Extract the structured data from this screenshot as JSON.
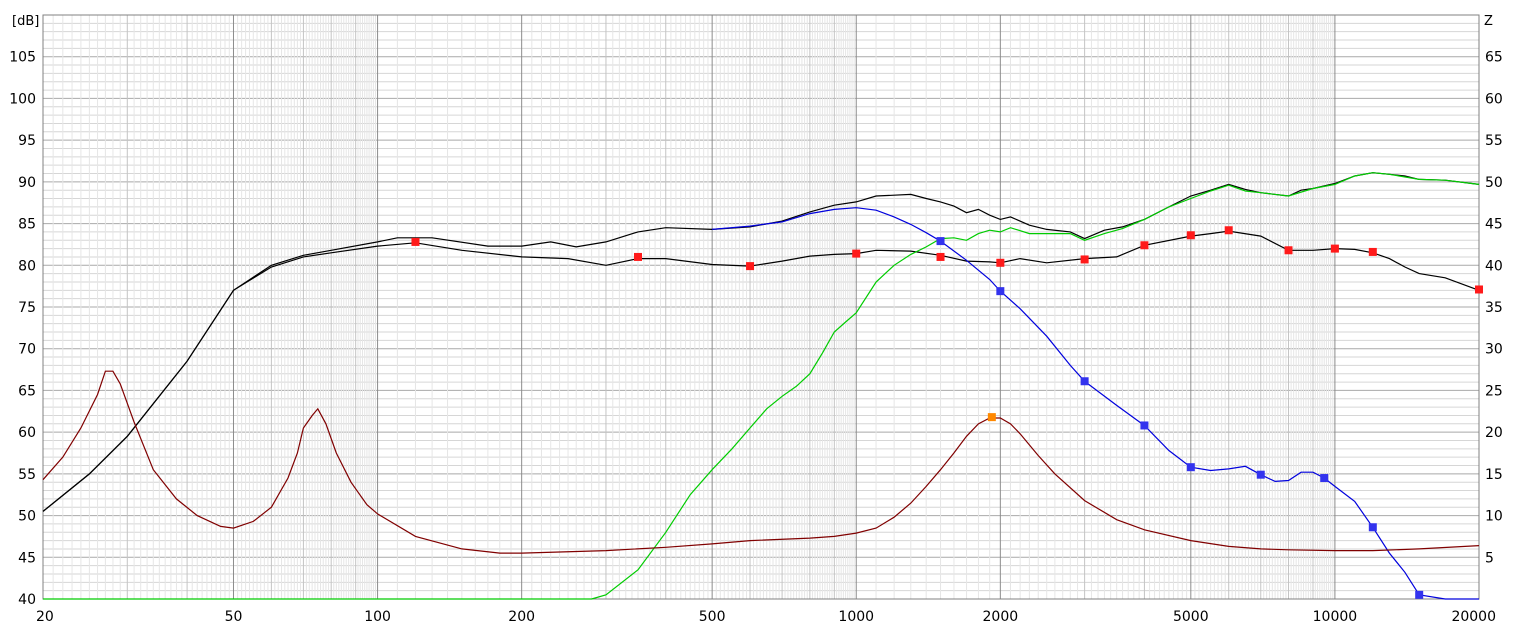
{
  "chart_data": {
    "type": "line",
    "x_scale": "log",
    "x_range": [
      20,
      20000
    ],
    "y_left_range": [
      40,
      110
    ],
    "y_right_range": [
      0,
      70
    ],
    "grid": true,
    "left_unit": "[dB]",
    "right_unit": "Z",
    "x_ticks": [
      {
        "v": 20,
        "label": "20"
      },
      {
        "v": 50,
        "label": "50"
      },
      {
        "v": 100,
        "label": "100"
      },
      {
        "v": 200,
        "label": "200"
      },
      {
        "v": 500,
        "label": "500"
      },
      {
        "v": 1000,
        "label": "1000"
      },
      {
        "v": 2000,
        "label": "2000"
      },
      {
        "v": 5000,
        "label": "5000"
      },
      {
        "v": 10000,
        "label": "10000"
      },
      {
        "v": 20000,
        "label": "20000"
      }
    ],
    "y_left_ticks": [
      {
        "v": 40,
        "label": "40"
      },
      {
        "v": 45,
        "label": "45"
      },
      {
        "v": 50,
        "label": "50"
      },
      {
        "v": 55,
        "label": "55"
      },
      {
        "v": 60,
        "label": "60"
      },
      {
        "v": 65,
        "label": "65"
      },
      {
        "v": 70,
        "label": "70"
      },
      {
        "v": 75,
        "label": "75"
      },
      {
        "v": 80,
        "label": "80"
      },
      {
        "v": 85,
        "label": "85"
      },
      {
        "v": 90,
        "label": "90"
      },
      {
        "v": 95,
        "label": "95"
      },
      {
        "v": 100,
        "label": "100"
      },
      {
        "v": 105,
        "label": "105"
      }
    ],
    "y_right_ticks": [
      {
        "v": 5,
        "label": "5"
      },
      {
        "v": 10,
        "label": "10"
      },
      {
        "v": 15,
        "label": "15"
      },
      {
        "v": 20,
        "label": "20"
      },
      {
        "v": 25,
        "label": "25"
      },
      {
        "v": 30,
        "label": "30"
      },
      {
        "v": 35,
        "label": "35"
      },
      {
        "v": 40,
        "label": "40"
      },
      {
        "v": 45,
        "label": "45"
      },
      {
        "v": 50,
        "label": "50"
      },
      {
        "v": 55,
        "label": "55"
      },
      {
        "v": 60,
        "label": "60"
      },
      {
        "v": 65,
        "label": "65"
      }
    ],
    "series": [
      {
        "color": "#000000",
        "axis": "left",
        "points": [
          [
            20,
            50.5
          ],
          [
            25,
            55
          ],
          [
            30,
            59.5
          ],
          [
            40,
            68.5
          ],
          [
            50,
            77
          ],
          [
            60,
            80
          ],
          [
            70,
            81.2
          ],
          [
            80,
            81.8
          ],
          [
            100,
            82.8
          ],
          [
            110,
            83.3
          ],
          [
            130,
            83.3
          ],
          [
            170,
            82.3
          ],
          [
            200,
            82.3
          ],
          [
            230,
            82.8
          ],
          [
            260,
            82.2
          ],
          [
            300,
            82.8
          ],
          [
            350,
            84
          ],
          [
            400,
            84.5
          ],
          [
            500,
            84.3
          ],
          [
            600,
            84.6
          ],
          [
            700,
            85.3
          ],
          [
            800,
            86.4
          ],
          [
            900,
            87.2
          ],
          [
            1000,
            87.6
          ],
          [
            1100,
            88.3
          ],
          [
            1200,
            88.4
          ],
          [
            1300,
            88.5
          ],
          [
            1400,
            88
          ],
          [
            1500,
            87.6
          ],
          [
            1600,
            87.1
          ],
          [
            1700,
            86.3
          ],
          [
            1800,
            86.7
          ],
          [
            1900,
            86
          ],
          [
            2000,
            85.5
          ],
          [
            2100,
            85.8
          ],
          [
            2300,
            84.8
          ],
          [
            2500,
            84.3
          ],
          [
            2800,
            84
          ],
          [
            3000,
            83.2
          ],
          [
            3300,
            84.2
          ],
          [
            3600,
            84.6
          ],
          [
            4000,
            85.5
          ],
          [
            4500,
            87
          ],
          [
            5000,
            88.3
          ],
          [
            5500,
            89
          ],
          [
            6000,
            89.7
          ],
          [
            6500,
            89.1
          ],
          [
            7000,
            88.7
          ],
          [
            8000,
            88.3
          ],
          [
            8500,
            89
          ],
          [
            9000,
            89.2
          ],
          [
            10000,
            89.8
          ],
          [
            11000,
            90.7
          ],
          [
            12000,
            91.1
          ],
          [
            13000,
            90.9
          ],
          [
            14000,
            90.7
          ],
          [
            15000,
            90.3
          ],
          [
            17000,
            90.2
          ],
          [
            20000,
            89.7
          ]
        ]
      },
      {
        "color": "#000000",
        "axis": "left",
        "points": [
          [
            20,
            50.5
          ],
          [
            25,
            55
          ],
          [
            30,
            59.5
          ],
          [
            40,
            68.5
          ],
          [
            50,
            77
          ],
          [
            60,
            79.8
          ],
          [
            70,
            81
          ],
          [
            80,
            81.5
          ],
          [
            100,
            82.3
          ],
          [
            120,
            82.7
          ],
          [
            150,
            81.8
          ],
          [
            200,
            81
          ],
          [
            250,
            80.8
          ],
          [
            300,
            80
          ],
          [
            350,
            80.8
          ],
          [
            400,
            80.8
          ],
          [
            500,
            80.1
          ],
          [
            600,
            79.9
          ],
          [
            700,
            80.5
          ],
          [
            800,
            81.1
          ],
          [
            900,
            81.3
          ],
          [
            1000,
            81.4
          ],
          [
            1100,
            81.8
          ],
          [
            1300,
            81.7
          ],
          [
            1500,
            81.2
          ],
          [
            1700,
            80.5
          ],
          [
            1900,
            80.4
          ],
          [
            2000,
            80.3
          ],
          [
            2200,
            80.8
          ],
          [
            2500,
            80.3
          ],
          [
            3000,
            80.8
          ],
          [
            3500,
            81
          ],
          [
            4000,
            82.4
          ],
          [
            5000,
            83.5
          ],
          [
            5500,
            83.8
          ],
          [
            6000,
            84.1
          ],
          [
            7000,
            83.5
          ],
          [
            8000,
            81.8
          ],
          [
            9000,
            81.8
          ],
          [
            10000,
            82
          ],
          [
            11000,
            81.9
          ],
          [
            12000,
            81.5
          ],
          [
            13000,
            80.8
          ],
          [
            14000,
            79.8
          ],
          [
            15000,
            79
          ],
          [
            17000,
            78.5
          ],
          [
            20000,
            77
          ]
        ]
      },
      {
        "color": "#00cc00",
        "axis": "left",
        "points": [
          [
            20,
            40
          ],
          [
            280,
            40
          ],
          [
            300,
            40.5
          ],
          [
            350,
            43.5
          ],
          [
            400,
            48
          ],
          [
            450,
            52.5
          ],
          [
            500,
            55.5
          ],
          [
            550,
            58
          ],
          [
            600,
            60.5
          ],
          [
            650,
            62.8
          ],
          [
            700,
            64.3
          ],
          [
            750,
            65.5
          ],
          [
            800,
            67
          ],
          [
            850,
            69.5
          ],
          [
            900,
            72
          ],
          [
            950,
            73.2
          ],
          [
            1000,
            74.3
          ],
          [
            1100,
            78
          ],
          [
            1200,
            80
          ],
          [
            1300,
            81.3
          ],
          [
            1400,
            82.2
          ],
          [
            1500,
            83.2
          ],
          [
            1600,
            83.3
          ],
          [
            1700,
            83
          ],
          [
            1800,
            83.8
          ],
          [
            1900,
            84.2
          ],
          [
            2000,
            84
          ],
          [
            2100,
            84.5
          ],
          [
            2300,
            83.8
          ],
          [
            2500,
            83.8
          ],
          [
            2800,
            83.8
          ],
          [
            3000,
            83
          ],
          [
            3300,
            83.8
          ],
          [
            3600,
            84.4
          ],
          [
            4000,
            85.5
          ],
          [
            4500,
            87
          ],
          [
            5000,
            88
          ],
          [
            5500,
            88.9
          ],
          [
            6000,
            89.6
          ],
          [
            6500,
            88.9
          ],
          [
            7000,
            88.7
          ],
          [
            8000,
            88.3
          ],
          [
            9000,
            89.2
          ],
          [
            10000,
            89.7
          ],
          [
            11000,
            90.7
          ],
          [
            12000,
            91.1
          ],
          [
            13000,
            90.9
          ],
          [
            15000,
            90.3
          ],
          [
            17000,
            90.2
          ],
          [
            20000,
            89.7
          ]
        ]
      },
      {
        "color": "#0000dd",
        "axis": "left",
        "points": [
          [
            500,
            84.3
          ],
          [
            600,
            84.7
          ],
          [
            700,
            85.2
          ],
          [
            800,
            86.2
          ],
          [
            900,
            86.7
          ],
          [
            1000,
            86.9
          ],
          [
            1100,
            86.6
          ],
          [
            1200,
            85.8
          ],
          [
            1300,
            84.9
          ],
          [
            1400,
            83.9
          ],
          [
            1500,
            82.9
          ],
          [
            1700,
            80.6
          ],
          [
            1900,
            78.3
          ],
          [
            2000,
            76.9
          ],
          [
            2200,
            74.8
          ],
          [
            2500,
            71.5
          ],
          [
            2800,
            68
          ],
          [
            3000,
            66.1
          ],
          [
            3500,
            63.2
          ],
          [
            4000,
            60.8
          ],
          [
            4500,
            57.8
          ],
          [
            5000,
            55.8
          ],
          [
            5500,
            55.4
          ],
          [
            6000,
            55.6
          ],
          [
            6500,
            55.9
          ],
          [
            7000,
            54.9
          ],
          [
            7500,
            54.1
          ],
          [
            8000,
            54.2
          ],
          [
            8500,
            55.2
          ],
          [
            9000,
            55.2
          ],
          [
            9500,
            54.5
          ],
          [
            10000,
            53.5
          ],
          [
            11000,
            51.7
          ],
          [
            12000,
            48.6
          ],
          [
            13000,
            45.5
          ],
          [
            14000,
            43.2
          ],
          [
            15000,
            40.5
          ],
          [
            17000,
            40
          ],
          [
            20000,
            40
          ]
        ]
      },
      {
        "color": "#800000",
        "axis": "right",
        "points": [
          [
            20,
            14.3
          ],
          [
            22,
            17
          ],
          [
            24,
            20.5
          ],
          [
            26,
            24.5
          ],
          [
            27,
            27.3
          ],
          [
            28,
            27.3
          ],
          [
            29,
            25.8
          ],
          [
            31,
            21.2
          ],
          [
            34,
            15.5
          ],
          [
            38,
            12
          ],
          [
            42,
            10
          ],
          [
            47,
            8.7
          ],
          [
            50,
            8.5
          ],
          [
            55,
            9.3
          ],
          [
            60,
            11
          ],
          [
            65,
            14.5
          ],
          [
            68,
            17.5
          ],
          [
            70,
            20.5
          ],
          [
            73,
            22
          ],
          [
            75,
            22.8
          ],
          [
            78,
            21
          ],
          [
            82,
            17.5
          ],
          [
            88,
            14
          ],
          [
            95,
            11.3
          ],
          [
            100,
            10.2
          ],
          [
            120,
            7.5
          ],
          [
            150,
            6
          ],
          [
            180,
            5.5
          ],
          [
            200,
            5.5
          ],
          [
            300,
            5.8
          ],
          [
            400,
            6.2
          ],
          [
            500,
            6.6
          ],
          [
            600,
            7
          ],
          [
            800,
            7.3
          ],
          [
            900,
            7.5
          ],
          [
            1000,
            7.9
          ],
          [
            1100,
            8.5
          ],
          [
            1200,
            9.8
          ],
          [
            1300,
            11.5
          ],
          [
            1400,
            13.5
          ],
          [
            1500,
            15.5
          ],
          [
            1600,
            17.5
          ],
          [
            1700,
            19.5
          ],
          [
            1800,
            21
          ],
          [
            1900,
            21.7
          ],
          [
            2000,
            21.7
          ],
          [
            2100,
            21
          ],
          [
            2200,
            19.8
          ],
          [
            2400,
            17.2
          ],
          [
            2600,
            15
          ],
          [
            3000,
            11.8
          ],
          [
            3500,
            9.5
          ],
          [
            4000,
            8.3
          ],
          [
            5000,
            7
          ],
          [
            6000,
            6.3
          ],
          [
            7000,
            6
          ],
          [
            8000,
            5.9
          ],
          [
            10000,
            5.8
          ],
          [
            12000,
            5.8
          ],
          [
            15000,
            6
          ],
          [
            20000,
            6.4
          ]
        ]
      }
    ],
    "markers": [
      {
        "color": "#ff1a1a",
        "points": [
          [
            120,
            82.8
          ],
          [
            350,
            81
          ],
          [
            600,
            79.9
          ],
          [
            1000,
            81.4
          ],
          [
            1500,
            81
          ],
          [
            2000,
            80.3
          ],
          [
            3000,
            80.7
          ],
          [
            4000,
            82.4
          ],
          [
            5000,
            83.6
          ],
          [
            6000,
            84.2
          ],
          [
            8000,
            81.8
          ],
          [
            10000,
            82
          ],
          [
            12000,
            81.6
          ],
          [
            20000,
            77.1
          ]
        ]
      },
      {
        "color": "#3333ee",
        "points": [
          [
            1500,
            82.9
          ],
          [
            2000,
            76.9
          ],
          [
            3000,
            66.1
          ],
          [
            4000,
            60.8
          ],
          [
            5000,
            55.8
          ],
          [
            7000,
            54.9
          ],
          [
            9500,
            54.5
          ],
          [
            12000,
            48.6
          ],
          [
            15000,
            40.5
          ]
        ]
      },
      {
        "color": "#ff8800",
        "points": [
          [
            1920,
            61.8
          ]
        ]
      }
    ]
  }
}
